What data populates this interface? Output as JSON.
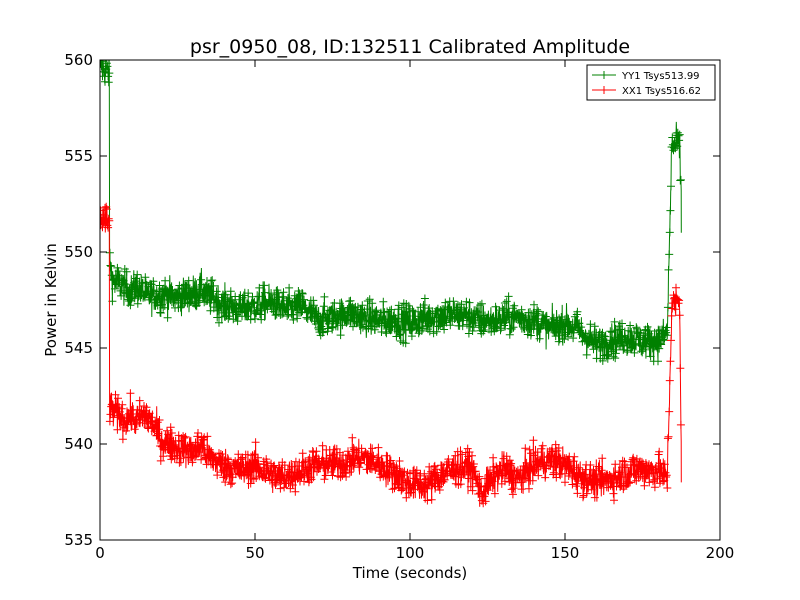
{
  "chart_data": {
    "type": "line",
    "title": "psr_0950_08, ID:132511 Calibrated Amplitude",
    "xlabel": "Time (seconds)",
    "ylabel": "Power in Kelvin",
    "xlim": [
      0,
      200
    ],
    "ylim": [
      535,
      560
    ],
    "xticks": [
      0,
      50,
      100,
      150,
      200
    ],
    "yticks": [
      535,
      540,
      545,
      550,
      555,
      560
    ],
    "grid": false,
    "legend_position": "top-right",
    "marker": "plus",
    "series": [
      {
        "name": "YY1 Tsys513.99",
        "color": "#008000",
        "x": [
          0,
          1,
          2,
          3,
          3.1,
          4,
          6,
          8,
          10,
          12,
          15,
          20,
          25,
          30,
          33,
          35,
          40,
          45,
          50,
          55,
          60,
          65,
          70,
          75,
          80,
          85,
          90,
          95,
          100,
          105,
          110,
          115,
          120,
          125,
          130,
          135,
          140,
          145,
          150,
          155,
          160,
          165,
          170,
          175,
          180,
          183,
          184.5,
          185,
          186,
          187,
          187.5
        ],
        "y": [
          559.8,
          559.6,
          559.4,
          559.5,
          549.5,
          548.6,
          548.4,
          548.1,
          548.0,
          548.2,
          547.7,
          547.8,
          547.6,
          547.9,
          548.1,
          547.7,
          547.3,
          547.0,
          547.2,
          547.4,
          547.0,
          547.2,
          546.5,
          546.6,
          546.8,
          546.6,
          546.4,
          546.5,
          546.3,
          546.6,
          546.7,
          546.8,
          546.6,
          546.4,
          546.5,
          546.6,
          546.4,
          546.0,
          546.3,
          545.9,
          545.2,
          545.4,
          545.6,
          545.3,
          545.4,
          545.8,
          555.8,
          555.5,
          555.7,
          555.3,
          553.0
        ]
      },
      {
        "name": "XX1 Tsys516.62",
        "color": "#ff0000",
        "x": [
          0,
          1,
          2,
          3,
          3.1,
          4,
          6,
          8,
          10,
          12,
          15,
          18,
          20,
          25,
          30,
          33,
          35,
          40,
          45,
          50,
          55,
          60,
          65,
          70,
          75,
          80,
          85,
          90,
          95,
          100,
          105,
          110,
          115,
          120,
          123,
          125,
          130,
          135,
          140,
          145,
          150,
          155,
          160,
          165,
          170,
          175,
          180,
          183,
          184.5,
          185,
          186,
          187,
          187.5
        ],
        "y": [
          551.8,
          551.7,
          551.5,
          551.6,
          542.0,
          541.7,
          541.5,
          541.3,
          541.4,
          541.2,
          541.5,
          540.8,
          540.2,
          539.8,
          539.6,
          539.9,
          539.3,
          538.9,
          538.6,
          538.9,
          538.4,
          538.3,
          538.6,
          538.9,
          539.0,
          539.1,
          539.3,
          538.9,
          538.5,
          537.9,
          537.8,
          538.4,
          538.8,
          538.7,
          537.4,
          537.9,
          538.7,
          538.2,
          538.9,
          539.2,
          538.9,
          538.3,
          538.0,
          538.2,
          538.5,
          538.7,
          538.6,
          538.3,
          547.4,
          547.2,
          547.4,
          547.3,
          540.0
        ]
      }
    ]
  }
}
